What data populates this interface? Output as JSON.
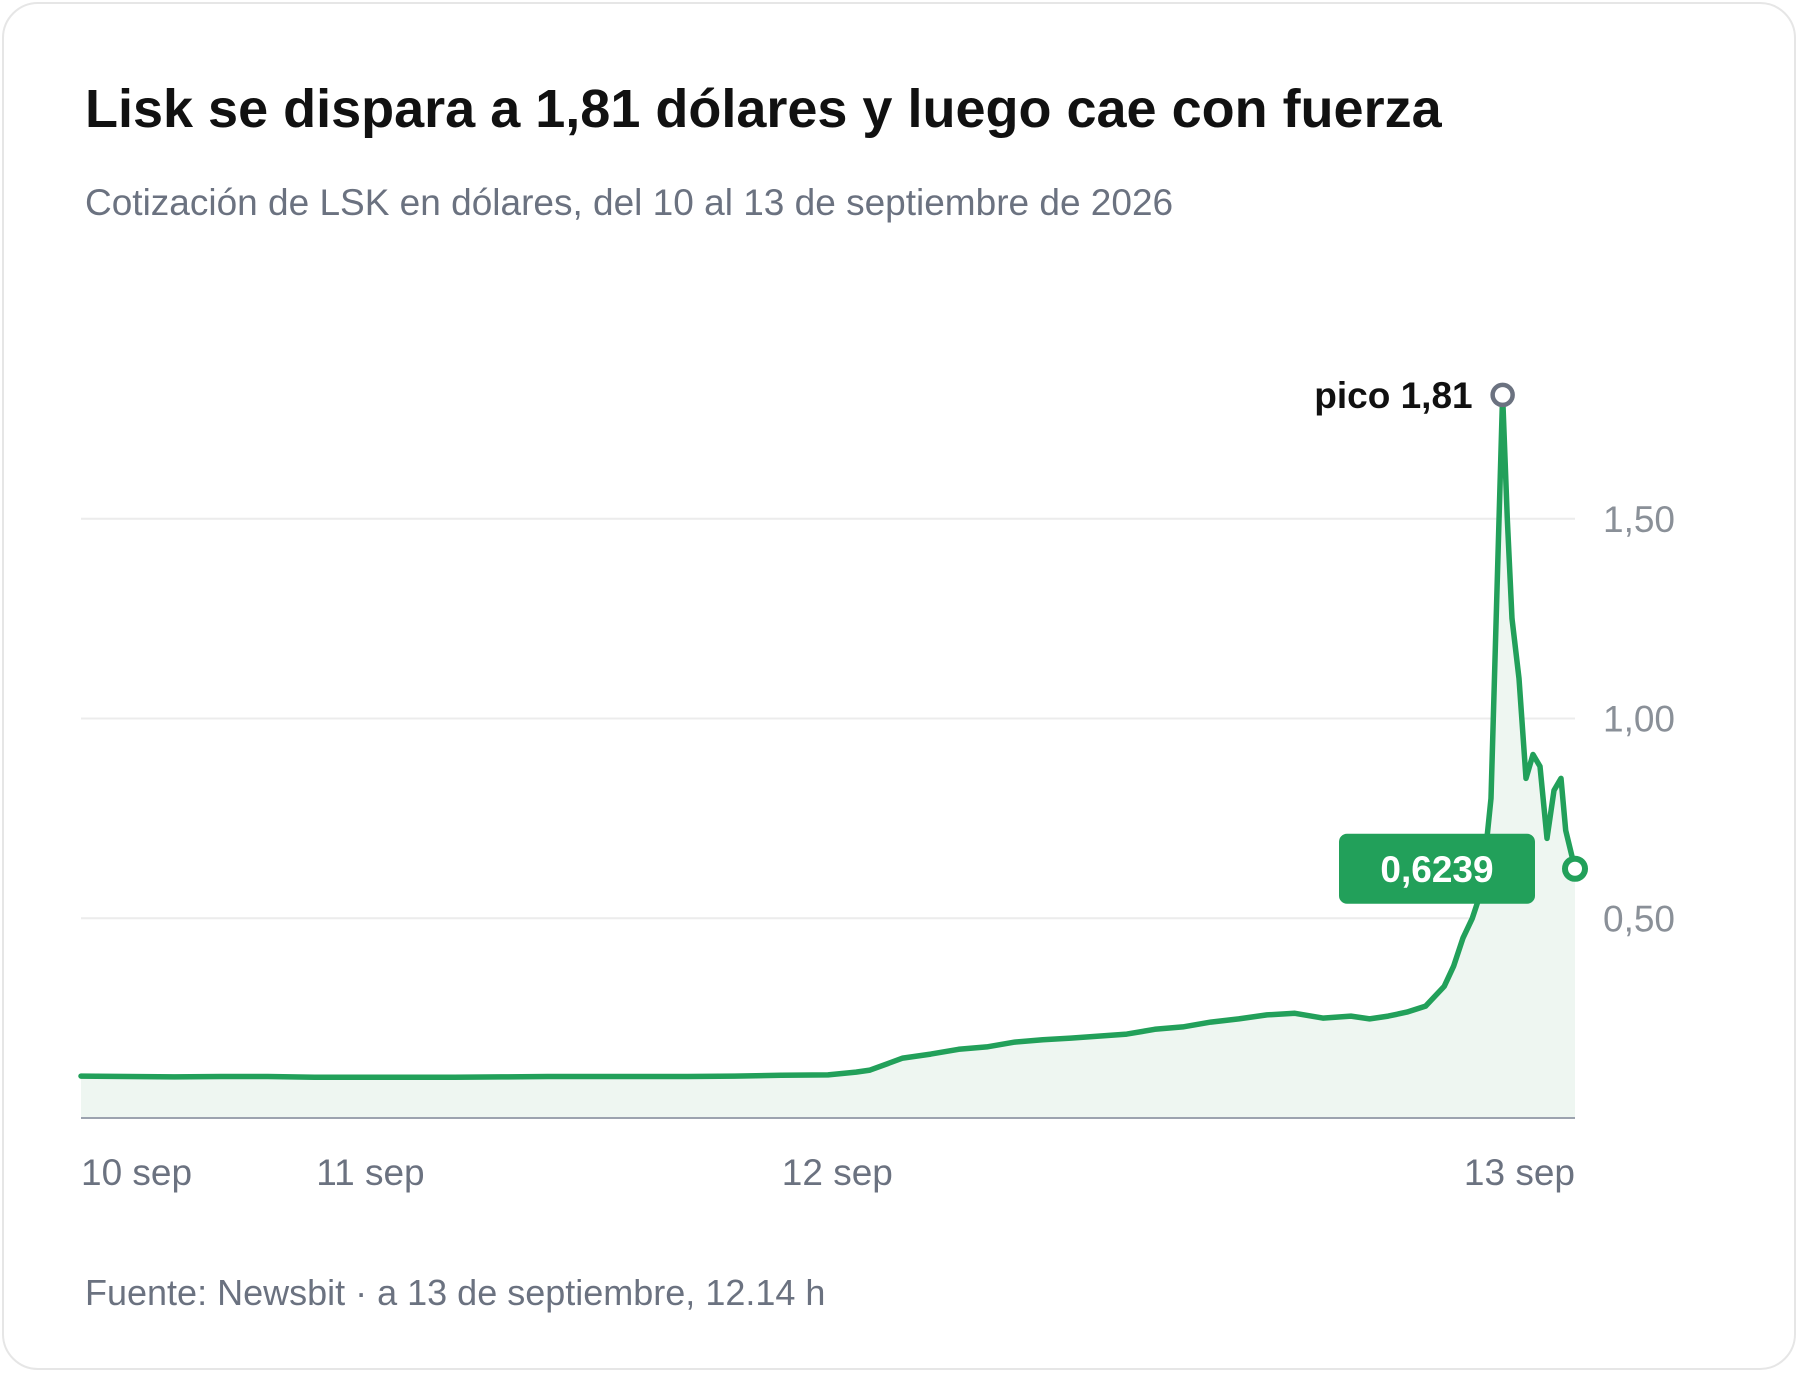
{
  "card": {
    "title": "Lisk se dispara a 1,81 dólares y luego cae con fuerza",
    "subtitle": "Cotización de LSK en dólares, del 10 al 13 de septiembre de 2026",
    "source": "Fuente: Newsbit · a 13 de septiembre, 12.14 h"
  },
  "colors": {
    "line": "#22a05a",
    "area": "#eef6f1",
    "peak_marker": "#6b7280",
    "label_bg": "#22a05a"
  },
  "chart_data": {
    "type": "area",
    "title": "Lisk se dispara a 1,81 dólares y luego cae con fuerza",
    "subtitle": "Cotización de LSK en dólares, del 10 al 13 de septiembre de 2026",
    "x_unit": "days since 10 sep",
    "xlim": [
      0,
      3.2
    ],
    "ylim": [
      0,
      2.0
    ],
    "grid": true,
    "y_axis_position": "right",
    "yticks": [
      0.5,
      1.0,
      1.5
    ],
    "ytick_labels": [
      "0,50",
      "1,00",
      "1,50"
    ],
    "xticks": [
      0,
      0.62,
      1.62,
      3.0
    ],
    "xtick_labels": [
      "10 sep",
      "11 sep",
      "12 sep",
      "13 sep"
    ],
    "series": [
      {
        "name": "LSK",
        "points": [
          [
            0,
            0.105
          ],
          [
            0.1,
            0.104
          ],
          [
            0.2,
            0.103
          ],
          [
            0.3,
            0.104
          ],
          [
            0.4,
            0.104
          ],
          [
            0.5,
            0.102
          ],
          [
            0.6,
            0.102
          ],
          [
            0.7,
            0.102
          ],
          [
            0.8,
            0.102
          ],
          [
            0.9,
            0.103
          ],
          [
            1.0,
            0.104
          ],
          [
            1.1,
            0.104
          ],
          [
            1.2,
            0.104
          ],
          [
            1.3,
            0.104
          ],
          [
            1.4,
            0.105
          ],
          [
            1.5,
            0.107
          ],
          [
            1.6,
            0.108
          ],
          [
            1.66,
            0.115
          ],
          [
            1.69,
            0.12
          ],
          [
            1.76,
            0.15
          ],
          [
            1.82,
            0.16
          ],
          [
            1.88,
            0.172
          ],
          [
            1.94,
            0.178
          ],
          [
            2.0,
            0.19
          ],
          [
            2.06,
            0.196
          ],
          [
            2.12,
            0.2
          ],
          [
            2.18,
            0.205
          ],
          [
            2.24,
            0.21
          ],
          [
            2.3,
            0.222
          ],
          [
            2.36,
            0.228
          ],
          [
            2.42,
            0.24
          ],
          [
            2.48,
            0.248
          ],
          [
            2.54,
            0.258
          ],
          [
            2.6,
            0.262
          ],
          [
            2.66,
            0.25
          ],
          [
            2.72,
            0.255
          ],
          [
            2.76,
            0.248
          ],
          [
            2.8,
            0.255
          ],
          [
            2.84,
            0.265
          ],
          [
            2.88,
            0.28
          ],
          [
            2.92,
            0.33
          ],
          [
            2.94,
            0.38
          ],
          [
            2.96,
            0.45
          ],
          [
            2.98,
            0.5
          ],
          [
            3.0,
            0.57
          ],
          [
            3.02,
            0.8
          ],
          [
            3.03,
            1.2
          ],
          [
            3.045,
            1.81
          ],
          [
            3.055,
            1.5
          ],
          [
            3.065,
            1.25
          ],
          [
            3.08,
            1.1
          ],
          [
            3.095,
            0.85
          ],
          [
            3.11,
            0.91
          ],
          [
            3.125,
            0.88
          ],
          [
            3.14,
            0.7
          ],
          [
            3.155,
            0.82
          ],
          [
            3.17,
            0.85
          ],
          [
            3.18,
            0.72
          ],
          [
            3.2,
            0.6239
          ]
        ]
      }
    ],
    "annotations": [
      {
        "type": "peak",
        "text": "pico 1,81",
        "x": 3.045,
        "y": 1.81
      },
      {
        "type": "last_value",
        "text": "0,6239",
        "x": 3.2,
        "y": 0.6239
      }
    ]
  }
}
